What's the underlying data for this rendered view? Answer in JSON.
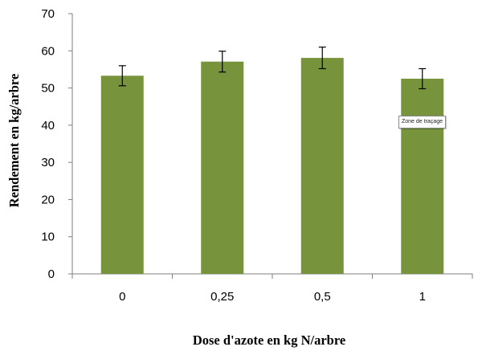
{
  "chart_data": {
    "type": "bar",
    "categories": [
      "0",
      "0,25",
      "0,5",
      "1"
    ],
    "values": [
      53.3,
      57.1,
      58.1,
      52.5
    ],
    "error": [
      2.7,
      2.8,
      2.9,
      2.7
    ],
    "xlabel": "Dose d'azote en kg N/arbre",
    "ylabel": "Rendement en kg/arbre",
    "ylim": [
      0,
      70
    ],
    "yticks": [
      0,
      10,
      20,
      30,
      40,
      50,
      60,
      70
    ],
    "bar_color": "#77933c",
    "grid": false,
    "legend": "none"
  },
  "tooltip": {
    "text": "Zone de traçage"
  }
}
